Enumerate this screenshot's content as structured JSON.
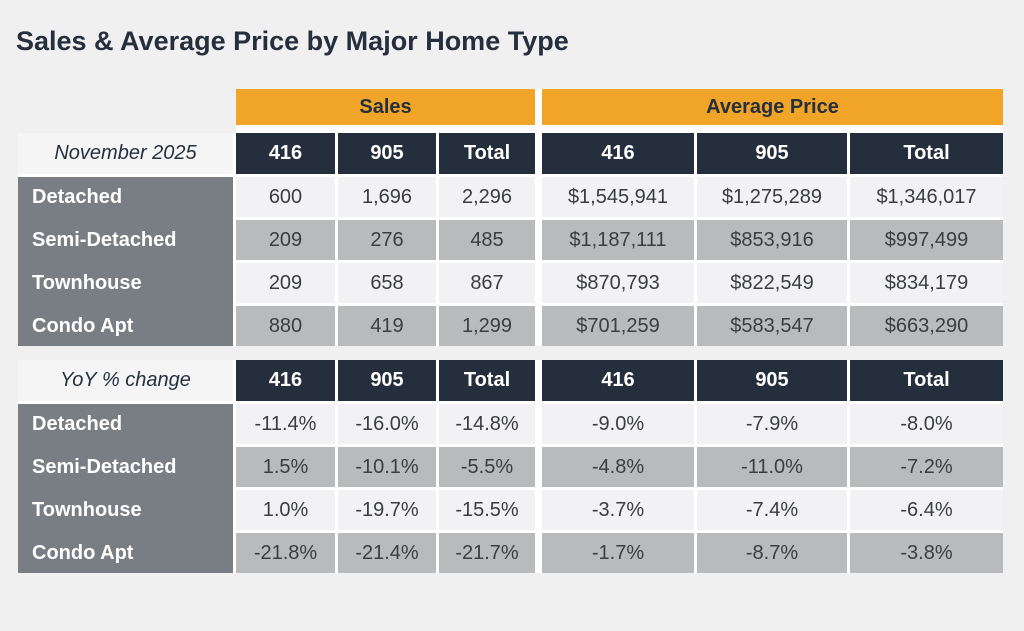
{
  "title": "Sales & Average Price by Major Home Type",
  "colors": {
    "page_bg": "#f0f0f1",
    "title_navy": "#262f3e",
    "accent_orange": "#f0a428",
    "header_navy": "#252e3c",
    "row_header_gray": "#797e84",
    "row_light": "#f2f2f4",
    "row_gray": "#b9babc"
  },
  "column_groups": [
    "Sales",
    "Average Price"
  ],
  "sub_columns": [
    "416",
    "905",
    "Total"
  ],
  "sections": [
    {
      "label": "November 2025",
      "rows": [
        {
          "label": "Detached",
          "sales": [
            "600",
            "1,696",
            "2,296"
          ],
          "avg": [
            "$1,545,941",
            "$1,275,289",
            "$1,346,017"
          ]
        },
        {
          "label": "Semi-Detached",
          "sales": [
            "209",
            "276",
            "485"
          ],
          "avg": [
            "$1,187,111",
            "$853,916",
            "$997,499"
          ]
        },
        {
          "label": "Townhouse",
          "sales": [
            "209",
            "658",
            "867"
          ],
          "avg": [
            "$870,793",
            "$822,549",
            "$834,179"
          ]
        },
        {
          "label": "Condo Apt",
          "sales": [
            "880",
            "419",
            "1,299"
          ],
          "avg": [
            "$701,259",
            "$583,547",
            "$663,290"
          ]
        }
      ]
    },
    {
      "label": "YoY % change",
      "rows": [
        {
          "label": "Detached",
          "sales": [
            "-11.4%",
            "-16.0%",
            "-14.8%"
          ],
          "avg": [
            "-9.0%",
            "-7.9%",
            "-8.0%"
          ]
        },
        {
          "label": "Semi-Detached",
          "sales": [
            "1.5%",
            "-10.1%",
            "-5.5%"
          ],
          "avg": [
            "-4.8%",
            "-11.0%",
            "-7.2%"
          ]
        },
        {
          "label": "Townhouse",
          "sales": [
            "1.0%",
            "-19.7%",
            "-15.5%"
          ],
          "avg": [
            "-3.7%",
            "-7.4%",
            "-6.4%"
          ]
        },
        {
          "label": "Condo Apt",
          "sales": [
            "-21.8%",
            "-21.4%",
            "-21.7%"
          ],
          "avg": [
            "-1.7%",
            "-8.7%",
            "-3.8%"
          ]
        }
      ]
    }
  ],
  "chart_data": {
    "type": "table",
    "title": "Sales & Average Price by Major Home Type",
    "column_groups": [
      "Sales",
      "Average Price"
    ],
    "columns": [
      "416",
      "905",
      "Total"
    ],
    "sections": [
      {
        "label": "November 2025",
        "rows": [
          {
            "home_type": "Detached",
            "sales": [
              600,
              1696,
              2296
            ],
            "average_price": [
              1545941,
              1275289,
              1346017
            ]
          },
          {
            "home_type": "Semi-Detached",
            "sales": [
              209,
              276,
              485
            ],
            "average_price": [
              1187111,
              853916,
              997499
            ]
          },
          {
            "home_type": "Townhouse",
            "sales": [
              209,
              658,
              867
            ],
            "average_price": [
              870793,
              822549,
              834179
            ]
          },
          {
            "home_type": "Condo Apt",
            "sales": [
              880,
              419,
              1299
            ],
            "average_price": [
              701259,
              583547,
              663290
            ]
          }
        ]
      },
      {
        "label": "YoY % change",
        "rows": [
          {
            "home_type": "Detached",
            "sales_pct": [
              -11.4,
              -16.0,
              -14.8
            ],
            "average_price_pct": [
              -9.0,
              -7.9,
              -8.0
            ]
          },
          {
            "home_type": "Semi-Detached",
            "sales_pct": [
              1.5,
              -10.1,
              -5.5
            ],
            "average_price_pct": [
              -4.8,
              -11.0,
              -7.2
            ]
          },
          {
            "home_type": "Townhouse",
            "sales_pct": [
              1.0,
              -19.7,
              -15.5
            ],
            "average_price_pct": [
              -3.7,
              -7.4,
              -6.4
            ]
          },
          {
            "home_type": "Condo Apt",
            "sales_pct": [
              -21.8,
              -21.4,
              -21.7
            ],
            "average_price_pct": [
              -1.7,
              -8.7,
              -3.8
            ]
          }
        ]
      }
    ]
  }
}
